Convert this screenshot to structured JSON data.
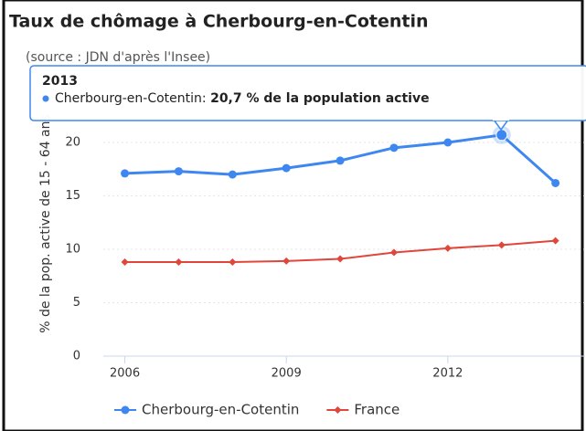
{
  "chart_data": {
    "type": "line",
    "title": "Taux de chômage à Cherbourg-en-Cotentin",
    "subtitle": "(source : JDN d'après l'Insee)",
    "y_label": "% de la pop. active de 15 - 64 ans",
    "x": [
      2006,
      2007,
      2008,
      2009,
      2010,
      2011,
      2012,
      2013,
      2014
    ],
    "xlim": [
      2005.6,
      2014.55
    ],
    "xticks": [
      2006,
      2009,
      2012
    ],
    "ylim": [
      0,
      25
    ],
    "yticks": [
      0,
      5,
      10,
      15,
      20
    ],
    "grid": true,
    "series": [
      {
        "name": "Cherbourg-en-Cotentin",
        "color": "#3f87f0",
        "marker": "circle",
        "values": [
          17.1,
          17.3,
          17.0,
          17.6,
          18.3,
          19.5,
          20.0,
          20.7,
          16.2
        ]
      },
      {
        "name": "France",
        "color": "#e0463a",
        "marker": "diamond",
        "values": [
          8.8,
          8.8,
          8.8,
          8.9,
          9.1,
          9.7,
          10.1,
          10.4,
          10.8
        ]
      }
    ],
    "tooltip": {
      "title": "2013",
      "label": "Cherbourg-en-Cotentin:",
      "value": "20,7 % de la population active"
    }
  }
}
